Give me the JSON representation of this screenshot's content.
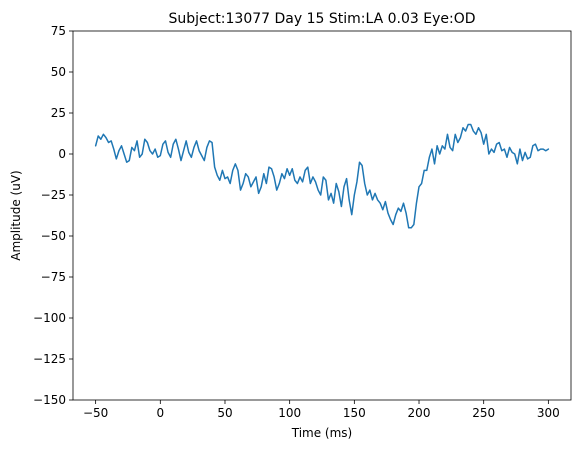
{
  "chart_data": {
    "type": "line",
    "title": "Subject:13077 Day 15 Stim:LA 0.03 Eye:OD",
    "xlabel": "Time (ms)",
    "ylabel": "Amplitude (uV)",
    "xlim": [
      -67.5,
      317.5
    ],
    "ylim": [
      -150,
      75
    ],
    "xticks": [
      -50,
      0,
      50,
      100,
      150,
      200,
      250,
      300
    ],
    "yticks": [
      -150,
      -125,
      -100,
      -75,
      -50,
      -25,
      0,
      25,
      50,
      75
    ],
    "xtick_labels": [
      "−50",
      "0",
      "50",
      "100",
      "150",
      "200",
      "250",
      "300"
    ],
    "ytick_labels": [
      "−150",
      "−125",
      "−100",
      "−75",
      "−50",
      "−25",
      "0",
      "25",
      "50",
      "75"
    ],
    "grid": false,
    "series": [
      {
        "color": "#1f77b4",
        "x": [
          -50,
          -48,
          -46,
          -44,
          -42,
          -40,
          -38,
          -36,
          -34,
          -32,
          -30,
          -28,
          -26,
          -24,
          -22,
          -20,
          -18,
          -16,
          -14,
          -12,
          -10,
          -8,
          -6,
          -4,
          -2,
          0,
          2,
          4,
          6,
          8,
          10,
          12,
          14,
          16,
          18,
          20,
          22,
          24,
          26,
          28,
          30,
          32,
          34,
          36,
          38,
          40,
          42,
          44,
          46,
          48,
          50,
          52,
          54,
          56,
          58,
          60,
          62,
          64,
          66,
          68,
          70,
          72,
          74,
          76,
          78,
          80,
          82,
          84,
          86,
          88,
          90,
          92,
          94,
          96,
          98,
          100,
          102,
          104,
          106,
          108,
          110,
          112,
          114,
          116,
          118,
          120,
          122,
          124,
          126,
          128,
          130,
          132,
          134,
          136,
          138,
          140,
          142,
          144,
          146,
          148,
          150,
          152,
          154,
          156,
          158,
          160,
          162,
          164,
          166,
          168,
          170,
          172,
          174,
          176,
          178,
          180,
          182,
          184,
          186,
          188,
          190,
          192,
          194,
          196,
          198,
          200,
          202,
          204,
          206,
          208,
          210,
          212,
          214,
          216,
          218,
          220,
          222,
          224,
          226,
          228,
          230,
          232,
          234,
          236,
          238,
          240,
          242,
          244,
          246,
          248,
          250,
          252,
          254,
          256,
          258,
          260,
          262,
          264,
          266,
          268,
          270,
          272,
          274,
          276,
          278,
          280,
          282,
          284,
          286,
          288,
          290,
          292,
          294,
          296,
          298,
          300
        ],
        "y": [
          5,
          11,
          9,
          12,
          10,
          7,
          8,
          3,
          -3,
          2,
          5,
          0,
          -5,
          -4,
          4,
          2,
          8,
          -2,
          0,
          9,
          7,
          2,
          0,
          3,
          -2,
          -1,
          6,
          8,
          1,
          -2,
          6,
          9,
          3,
          -4,
          2,
          8,
          1,
          -2,
          4,
          8,
          2,
          -1,
          -4,
          4,
          8,
          7,
          -8,
          -13,
          -16,
          -10,
          -15,
          -14,
          -18,
          -10,
          -6,
          -10,
          -22,
          -18,
          -12,
          -14,
          -20,
          -17,
          -14,
          -24,
          -20,
          -12,
          -18,
          -8,
          -9,
          -14,
          -22,
          -18,
          -12,
          -15,
          -9,
          -13,
          -9,
          -16,
          -18,
          -14,
          -17,
          -10,
          -8,
          -18,
          -14,
          -17,
          -22,
          -25,
          -14,
          -16,
          -28,
          -24,
          -30,
          -18,
          -23,
          -32,
          -20,
          -15,
          -28,
          -37,
          -25,
          -17,
          -5,
          -7,
          -18,
          -25,
          -22,
          -28,
          -24,
          -28,
          -30,
          -34,
          -29,
          -36,
          -40,
          -43,
          -37,
          -33,
          -35,
          -30,
          -36,
          -45,
          -45,
          -43,
          -30,
          -20,
          -18,
          -10,
          -10,
          -2,
          3,
          -6,
          5,
          0,
          5,
          3,
          12,
          4,
          2,
          12,
          7,
          10,
          16,
          14,
          18,
          18,
          14,
          12,
          16,
          13,
          6,
          12,
          0,
          3,
          1,
          6,
          7,
          2,
          3,
          -2,
          4,
          1,
          0,
          -6,
          3,
          -4,
          1,
          -3,
          -2,
          5,
          6,
          2,
          3,
          3,
          2,
          3
        ]
      }
    ]
  }
}
